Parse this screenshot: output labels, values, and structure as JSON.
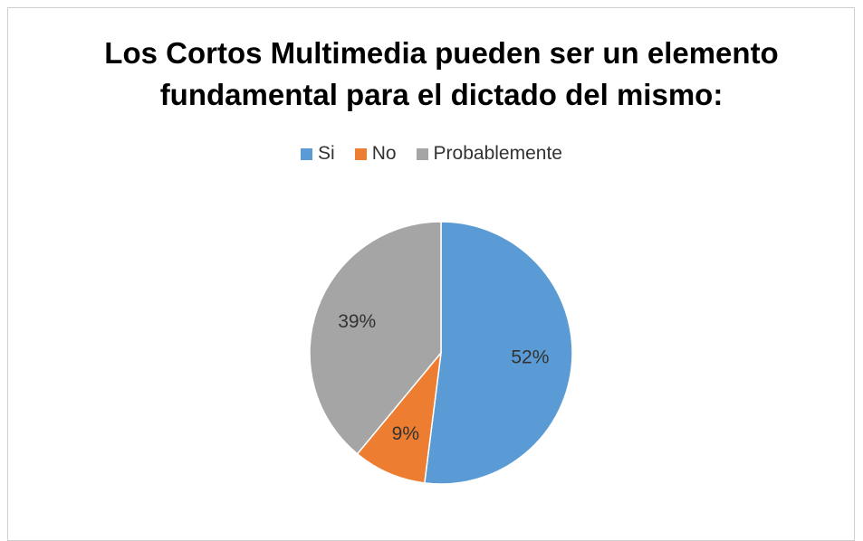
{
  "chart_data": {
    "type": "pie",
    "title": "Los Cortos Multimedia pueden ser un elemento fundamental para el dictado del mismo:",
    "categories": [
      "Si",
      "No",
      "Probablemente"
    ],
    "values": [
      52,
      9,
      39
    ],
    "value_labels": [
      "52%",
      "9%",
      "39%"
    ],
    "colors": [
      "#5b9bd5",
      "#ed7d31",
      "#a5a5a5"
    ],
    "legend": "top"
  }
}
